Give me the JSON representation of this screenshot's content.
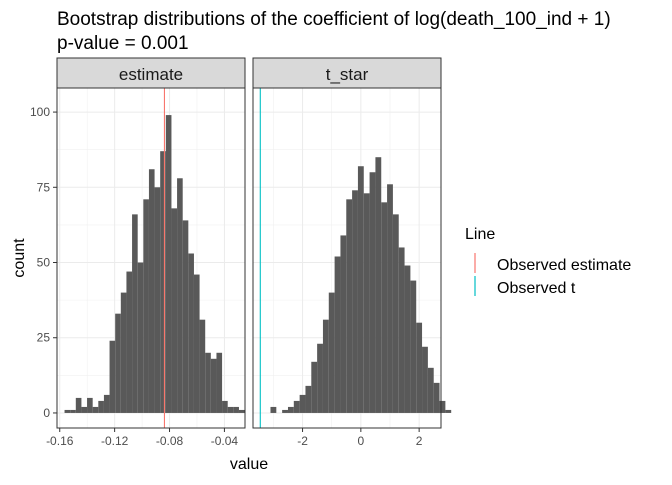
{
  "chart_data": {
    "type": "bar",
    "title": "Bootstrap distributions of the coefficient of log(death_100_ind + 1)",
    "subtitle": "p-value = 0.001",
    "xlabel": "value",
    "ylabel": "count",
    "grid": true,
    "legend_position": "right",
    "legend": {
      "title": "Line",
      "entries": [
        {
          "label": "Observed estimate",
          "color": "#F8766D"
        },
        {
          "label": "Observed t",
          "color": "#00BFC4"
        }
      ]
    },
    "bar_color": "#595959",
    "facets": [
      {
        "strip": "estimate",
        "xlim": [
          -0.162,
          -0.025
        ],
        "ylim": [
          -5,
          108
        ],
        "x_ticks": [
          -0.16,
          -0.12,
          -0.08,
          -0.04
        ],
        "x_tick_labels": [
          "-0.16",
          "-0.12",
          "-0.08",
          "-0.04"
        ],
        "y_ticks": [
          0,
          25,
          50,
          75,
          100
        ],
        "bin_start": -0.1565,
        "bin_width": 0.0041,
        "counts": [
          1,
          1,
          5,
          2,
          5,
          2,
          4,
          6,
          24,
          33,
          40,
          47,
          66,
          50,
          71,
          81,
          75,
          87,
          99,
          68,
          78,
          64,
          53,
          46,
          31,
          20,
          18,
          20,
          4,
          2,
          2,
          1
        ],
        "vline": {
          "x": -0.0837,
          "color": "#F8766D"
        }
      },
      {
        "strip": "t_star",
        "xlim": [
          -3.7,
          2.75
        ],
        "ylim": [
          -5,
          108
        ],
        "x_ticks": [
          -2,
          0,
          2
        ],
        "x_tick_labels": [
          "-2",
          "0",
          "2"
        ],
        "y_ticks": [
          0,
          25,
          50,
          75,
          100
        ],
        "bin_start": -3.1,
        "bin_width": 0.2,
        "counts": [
          2,
          0,
          1,
          2,
          4,
          6,
          9,
          17,
          23,
          31,
          40,
          52,
          59,
          71,
          74,
          82,
          73,
          80,
          85,
          70,
          76,
          66,
          55,
          49,
          44,
          30,
          22,
          15,
          10,
          4,
          1
        ],
        "vline": {
          "x": -3.45,
          "color": "#00BFC4"
        }
      }
    ]
  }
}
